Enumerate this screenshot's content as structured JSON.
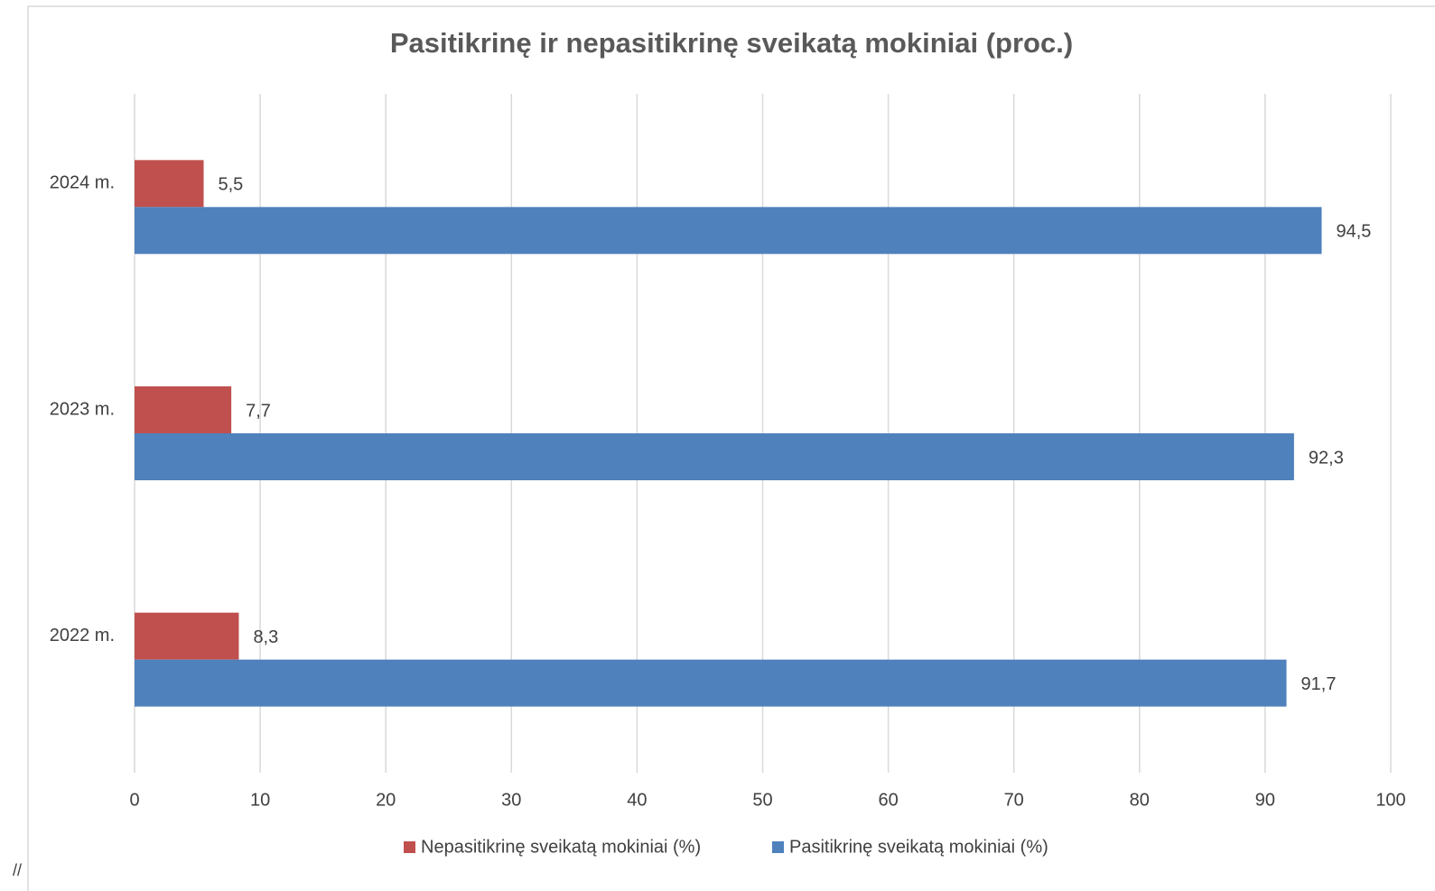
{
  "chart_data": {
    "type": "bar",
    "orientation": "horizontal",
    "title": "Pasitikrinę ir nepasitikrinę sveikatą mokiniai (proc.)",
    "categories": [
      "2022 m.",
      "2023 m.",
      "2024 m."
    ],
    "series": [
      {
        "name": "Nepasitikrinę sveikatą mokiniai (%)",
        "color": "#c0504d",
        "values": [
          8.3,
          7.7,
          5.5
        ],
        "value_labels": [
          "8,3",
          "7,7",
          "5,5"
        ]
      },
      {
        "name": "Pasitikrinę sveikatą mokiniai (%)",
        "color": "#4f81bd",
        "values": [
          91.7,
          92.3,
          94.5
        ],
        "value_labels": [
          "91,7",
          "92,3",
          "94,5"
        ]
      }
    ],
    "xlim": [
      0,
      100
    ],
    "xticks": [
      0,
      10,
      20,
      30,
      40,
      50,
      60,
      70,
      80,
      90,
      100
    ],
    "grid": true,
    "legend": "bottom",
    "annotation": "//"
  }
}
